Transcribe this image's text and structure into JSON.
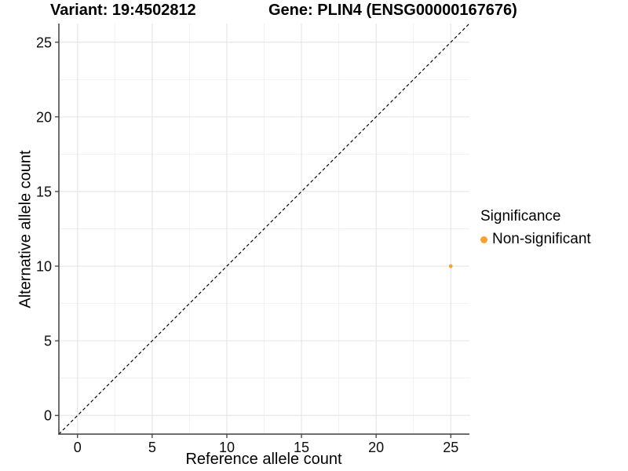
{
  "chart_data": {
    "type": "scatter",
    "title_left": "Variant: 19:4502812",
    "title_right": "Gene: PLIN4 (ENSG00000167676)",
    "xlabel": "Reference allele count",
    "ylabel": "Alternative allele count",
    "xlim": [
      -1.25,
      26.25
    ],
    "ylim": [
      -1.25,
      26.25
    ],
    "xticks": [
      0,
      5,
      10,
      15,
      20,
      25
    ],
    "yticks": [
      0,
      5,
      10,
      15,
      20,
      25
    ],
    "grid": "major+minor",
    "minor_gridlines_at_midpoints": true,
    "identity_line": {
      "slope": 1,
      "intercept": 0,
      "style": "dashed",
      "color": "#000000"
    },
    "series": [
      {
        "name": "Non-significant",
        "color": "#FAA134",
        "points": [
          {
            "x": 25,
            "y": 10
          }
        ]
      }
    ],
    "legend": {
      "title": "Significance",
      "position": "right",
      "entries": [
        {
          "label": "Non-significant",
          "color": "#FAA134"
        }
      ]
    }
  },
  "colors": {
    "background": "#FFFFFF",
    "accent_orange": "#FAA134",
    "grid_major": "#E4E4E4",
    "grid_minor": "#F1F1F1",
    "axis": "#3F3F3F",
    "abline": "#000000",
    "text": "#000000"
  }
}
